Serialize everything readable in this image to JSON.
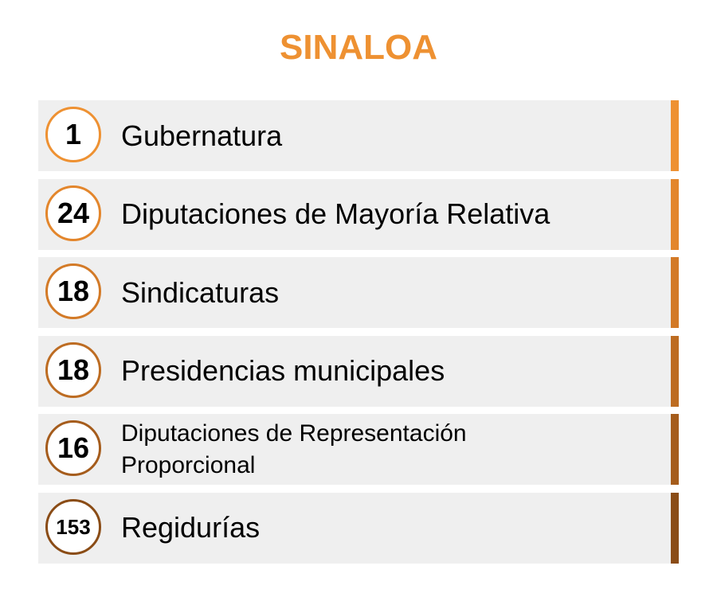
{
  "title": "SINALOA",
  "colors": {
    "title": "#ee9132",
    "row_background": "#efefef"
  },
  "rows": [
    {
      "number": "1",
      "label": "Gubernatura",
      "accent": "#ee9132"
    },
    {
      "number": "24",
      "label": "Diputaciones de Mayoría Relativa",
      "accent": "#e3862c"
    },
    {
      "number": "18",
      "label": "Sindicaturas",
      "accent": "#d37a27"
    },
    {
      "number": "18",
      "label": "Presidencias municipales",
      "accent": "#bd6c22"
    },
    {
      "number": "16",
      "label": "Diputaciones de Representación Proporcional",
      "accent": "#a55c1c"
    },
    {
      "number": "153",
      "label": "Regidurías",
      "accent": "#8a4c16"
    }
  ]
}
